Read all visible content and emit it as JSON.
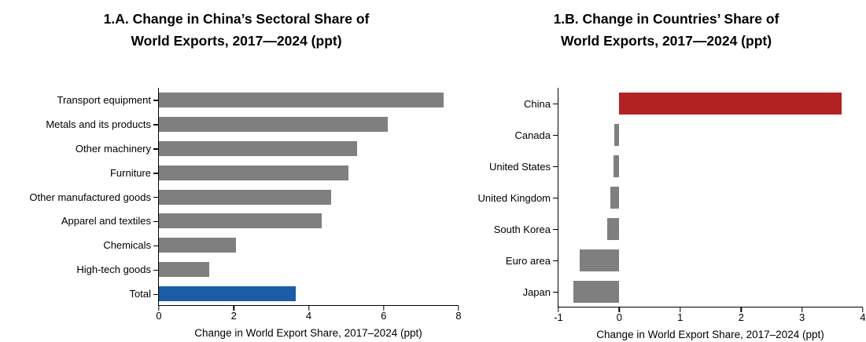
{
  "colors": {
    "bar_gray": "#7f7f7f",
    "bar_blue": "#1b5da5",
    "bar_red": "#b22222",
    "axis": "#000000",
    "background": "#ffffff"
  },
  "chart_data": [
    {
      "type": "bar",
      "orientation": "horizontal",
      "title_line1": "1.A. Change in China’s Sectoral Share of",
      "title_line2": "World Exports, 2017—2024 (ppt)",
      "xlabel": "Change in World Export Share, 2017–2024 (ppt)",
      "categories": [
        "Transport equipment",
        "Metals and its products",
        "Other machinery",
        "Furniture",
        "Other manufactured goods",
        "Apparel and textiles",
        "Chemicals",
        "High-tech goods",
        "Total"
      ],
      "values": [
        7.6,
        6.1,
        5.3,
        5.05,
        4.6,
        4.35,
        2.05,
        1.35,
        3.65
      ],
      "bar_colors": [
        "#7f7f7f",
        "#7f7f7f",
        "#7f7f7f",
        "#7f7f7f",
        "#7f7f7f",
        "#7f7f7f",
        "#7f7f7f",
        "#7f7f7f",
        "#1b5da5"
      ],
      "xlim": [
        0,
        8
      ],
      "xticks": [
        0,
        2,
        4,
        6,
        8
      ],
      "grid": false,
      "legend": null
    },
    {
      "type": "bar",
      "orientation": "horizontal",
      "title_line1": "1.B. Change in Countries’ Share of",
      "title_line2": "World Exports, 2017—2024 (ppt)",
      "xlabel": "Change in World Export Share, 2017–2024 (ppt)",
      "categories": [
        "China",
        "Canada",
        "United States",
        "United Kingdom",
        "South Korea",
        "Euro area",
        "Japan"
      ],
      "values": [
        3.65,
        -0.08,
        -0.1,
        -0.15,
        -0.2,
        -0.65,
        -0.75
      ],
      "bar_colors": [
        "#b22222",
        "#7f7f7f",
        "#7f7f7f",
        "#7f7f7f",
        "#7f7f7f",
        "#7f7f7f",
        "#7f7f7f"
      ],
      "xlim": [
        -1,
        4
      ],
      "xticks": [
        -1,
        0,
        1,
        2,
        3,
        4
      ],
      "grid": false,
      "legend": null
    }
  ]
}
